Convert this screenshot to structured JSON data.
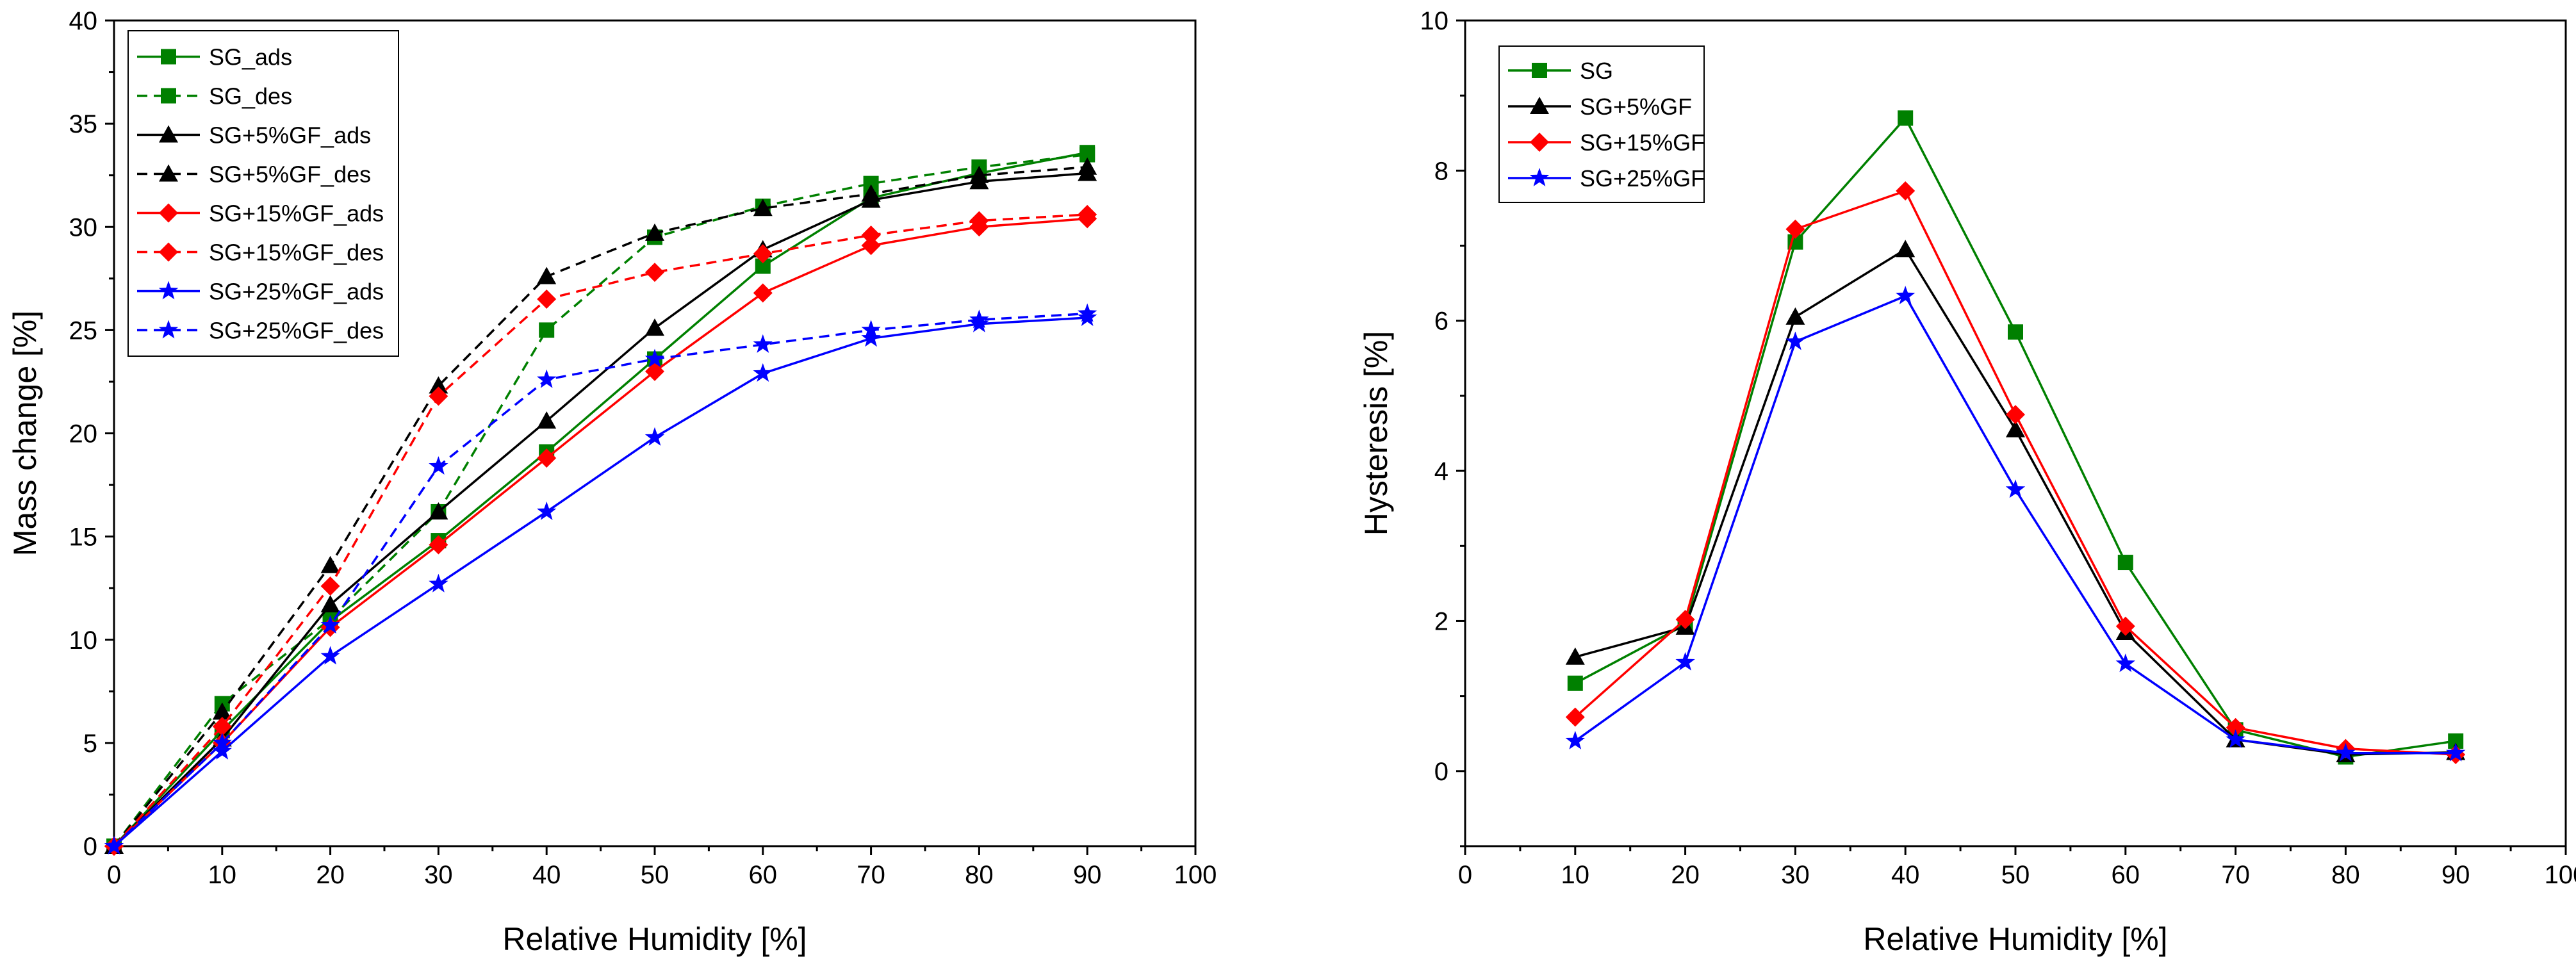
{
  "chart_data": [
    {
      "type": "line",
      "title": "",
      "xlabel": "Relative Humidity [%]",
      "ylabel": "Mass change [%]",
      "xlim": [
        0,
        100
      ],
      "ylim": [
        0,
        40
      ],
      "xticks": [
        0,
        10,
        20,
        30,
        40,
        50,
        60,
        70,
        80,
        90,
        100
      ],
      "yticks": [
        0,
        5,
        10,
        15,
        20,
        25,
        30,
        35,
        40
      ],
      "grid": false,
      "legend_position": "top-left",
      "series": [
        {
          "name": "SG_ads",
          "color": "#008000",
          "marker": "square",
          "dash": "solid",
          "x": [
            0,
            10,
            20,
            30,
            40,
            50,
            60,
            70,
            80,
            90
          ],
          "values": [
            0,
            5.6,
            10.9,
            14.8,
            19.1,
            23.6,
            28.1,
            31.4,
            32.6,
            33.6
          ]
        },
        {
          "name": "SG_des",
          "color": "#008000",
          "marker": "square",
          "dash": "dashed",
          "x": [
            0,
            10,
            20,
            30,
            40,
            50,
            60,
            70,
            80,
            90
          ],
          "values": [
            0,
            6.9,
            11.0,
            16.2,
            25.0,
            29.5,
            31.0,
            32.1,
            32.9,
            33.5
          ]
        },
        {
          "name": "SG+5%GF_ads",
          "color": "#000000",
          "marker": "triangle",
          "dash": "solid",
          "x": [
            0,
            10,
            20,
            30,
            40,
            50,
            60,
            70,
            80,
            90
          ],
          "values": [
            0,
            5.2,
            11.7,
            16.2,
            20.6,
            25.1,
            28.9,
            31.3,
            32.2,
            32.6
          ]
        },
        {
          "name": "SG+5%GF_des",
          "color": "#000000",
          "marker": "triangle",
          "dash": "dashed",
          "x": [
            0,
            10,
            20,
            30,
            40,
            50,
            60,
            70,
            80,
            90
          ],
          "values": [
            0,
            6.5,
            13.6,
            22.3,
            27.6,
            29.7,
            30.9,
            31.6,
            32.5,
            32.9
          ]
        },
        {
          "name": "SG+15%GF_ads",
          "color": "#ff0000",
          "marker": "diamond",
          "dash": "solid",
          "x": [
            0,
            10,
            20,
            30,
            40,
            50,
            60,
            70,
            80,
            90
          ],
          "values": [
            0,
            5.0,
            10.6,
            14.6,
            18.8,
            23.0,
            26.8,
            29.1,
            30.0,
            30.4
          ]
        },
        {
          "name": "SG+15%GF_des",
          "color": "#ff0000",
          "marker": "diamond",
          "dash": "dashed",
          "x": [
            0,
            10,
            20,
            30,
            40,
            50,
            60,
            70,
            80,
            90
          ],
          "values": [
            0,
            5.8,
            12.6,
            21.8,
            26.5,
            27.8,
            28.7,
            29.6,
            30.3,
            30.6
          ]
        },
        {
          "name": "SG+25%GF_ads",
          "color": "#0000ff",
          "marker": "star",
          "dash": "solid",
          "x": [
            0,
            10,
            20,
            30,
            40,
            50,
            60,
            70,
            80,
            90
          ],
          "values": [
            0,
            4.6,
            9.2,
            12.7,
            16.2,
            19.8,
            22.9,
            24.6,
            25.3,
            25.6
          ]
        },
        {
          "name": "SG+25%GF_des",
          "color": "#0000ff",
          "marker": "star",
          "dash": "dashed",
          "x": [
            0,
            10,
            20,
            30,
            40,
            50,
            60,
            70,
            80,
            90
          ],
          "values": [
            0,
            5.0,
            10.7,
            18.4,
            22.6,
            23.6,
            24.3,
            25.0,
            25.5,
            25.8
          ]
        }
      ]
    },
    {
      "type": "line",
      "title": "",
      "xlabel": "Relative Humidity [%]",
      "ylabel": "Hysteresis [%]",
      "xlim": [
        0,
        100
      ],
      "ylim": [
        -1,
        10
      ],
      "xticks": [
        0,
        10,
        20,
        30,
        40,
        50,
        60,
        70,
        80,
        90,
        100
      ],
      "yticks": [
        0,
        2,
        4,
        6,
        8,
        10
      ],
      "grid": false,
      "legend_position": "top-left",
      "series": [
        {
          "name": "SG",
          "color": "#008000",
          "marker": "square",
          "dash": "solid",
          "x": [
            10,
            20,
            30,
            40,
            50,
            60,
            70,
            80,
            90
          ],
          "values": [
            1.17,
            1.95,
            7.05,
            8.7,
            5.85,
            2.78,
            0.55,
            0.19,
            0.4
          ]
        },
        {
          "name": "SG+5%GF",
          "color": "#000000",
          "marker": "triangle",
          "dash": "solid",
          "x": [
            10,
            20,
            30,
            40,
            50,
            60,
            70,
            80,
            90
          ],
          "values": [
            1.52,
            1.92,
            6.05,
            6.95,
            4.55,
            1.85,
            0.42,
            0.22,
            0.25
          ]
        },
        {
          "name": "SG+15%GF",
          "color": "#ff0000",
          "marker": "diamond",
          "dash": "solid",
          "x": [
            10,
            20,
            30,
            40,
            50,
            60,
            70,
            80,
            90
          ],
          "values": [
            0.72,
            2.02,
            7.22,
            7.73,
            4.75,
            1.93,
            0.58,
            0.3,
            0.22
          ]
        },
        {
          "name": "SG+25%GF",
          "color": "#0000ff",
          "marker": "star",
          "dash": "solid",
          "x": [
            10,
            20,
            30,
            40,
            50,
            60,
            70,
            80,
            90
          ],
          "values": [
            0.4,
            1.45,
            5.72,
            6.33,
            3.75,
            1.43,
            0.42,
            0.24,
            0.24
          ]
        }
      ]
    }
  ]
}
